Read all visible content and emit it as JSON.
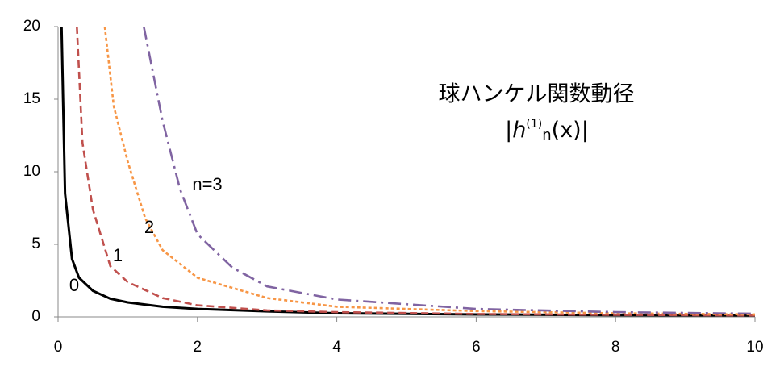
{
  "chart_data": {
    "type": "line",
    "title": "球ハンケル関数動径",
    "formula": [
      "|",
      "h",
      "(1)",
      "n",
      "(x)|"
    ],
    "xlim": [
      0,
      10
    ],
    "ylim": [
      0,
      20
    ],
    "xticks": [
      0,
      2,
      4,
      6,
      8,
      10
    ],
    "yticks": [
      0,
      5,
      10,
      15,
      20
    ],
    "grid": false,
    "series": [
      {
        "name": "0",
        "color": "#000000",
        "dash": "solid",
        "x": [
          0.05,
          0.1,
          0.2,
          0.3,
          0.5,
          0.75,
          1,
          1.5,
          2,
          3,
          4,
          6,
          8,
          10
        ],
        "values": [
          20,
          8.5,
          4,
          2.7,
          1.8,
          1.25,
          1,
          0.7,
          0.55,
          0.38,
          0.25,
          0.17,
          0.12,
          0.1
        ]
      },
      {
        "name": "1",
        "color": "#c0504d",
        "dash": "dash",
        "x": [
          0.27,
          0.35,
          0.5,
          0.75,
          1,
          1.5,
          2,
          3,
          4,
          6,
          8,
          10
        ],
        "values": [
          20,
          12,
          7.4,
          3.5,
          2.4,
          1.3,
          0.8,
          0.45,
          0.33,
          0.2,
          0.14,
          0.1
        ]
      },
      {
        "name": "2",
        "color": "#f79646",
        "dash": "dot",
        "x": [
          0.67,
          0.8,
          1,
          1.25,
          1.5,
          2,
          3,
          4,
          6,
          8,
          10
        ],
        "values": [
          20,
          14.5,
          10.7,
          6.8,
          4.6,
          2.7,
          1.3,
          0.7,
          0.4,
          0.25,
          0.17
        ]
      },
      {
        "name": "n=3",
        "color": "#8064a2",
        "dash": "dashdot",
        "x": [
          1.23,
          1.5,
          1.75,
          2,
          2.5,
          3,
          4,
          6,
          8,
          10
        ],
        "values": [
          20,
          13.5,
          8.8,
          5.7,
          3.4,
          2.1,
          1.2,
          0.55,
          0.33,
          0.22
        ]
      }
    ]
  }
}
